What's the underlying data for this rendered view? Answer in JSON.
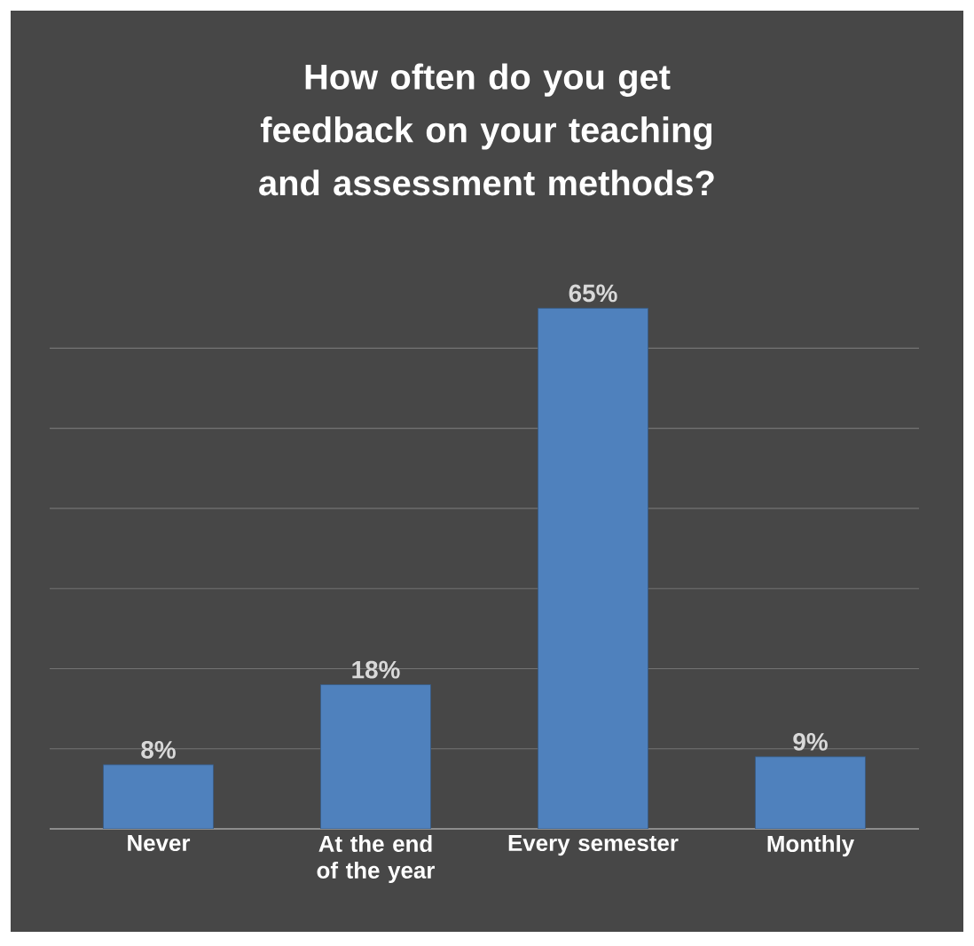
{
  "chart_data": {
    "type": "bar",
    "title": "How often do you get feedback on your teaching and assessment methods?",
    "categories": [
      "Never",
      "At the end of the year",
      "Every semester",
      "Monthly"
    ],
    "values": [
      8,
      18,
      65,
      9
    ],
    "value_labels": [
      "8%",
      "18%",
      "65%",
      "9%"
    ],
    "color": "#4f81bd",
    "grid": "y",
    "tick_labels": "x"
  }
}
